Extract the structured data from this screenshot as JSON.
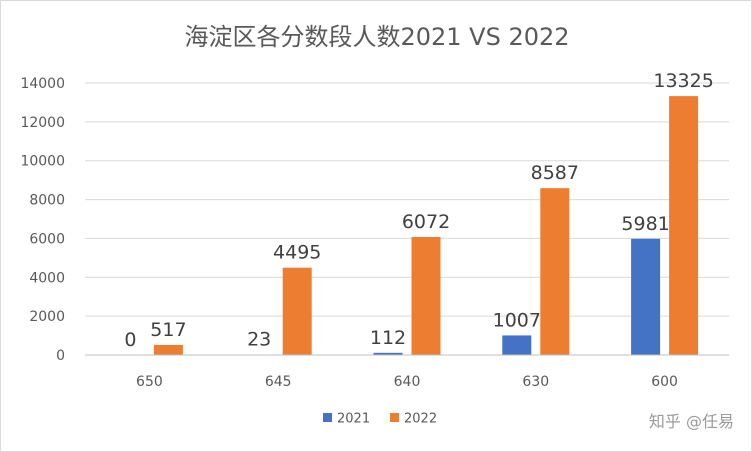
{
  "chart_data": {
    "type": "bar",
    "title": "海淀区各分数段人数2021 VS 2022",
    "categories": [
      "650",
      "645",
      "640",
      "630",
      "600"
    ],
    "series": [
      {
        "name": "2021",
        "values": [
          0,
          23,
          112,
          1007,
          5981
        ],
        "color": "#4472c4"
      },
      {
        "name": "2022",
        "values": [
          517,
          4495,
          6072,
          8587,
          13325
        ],
        "color": "#ed7d31"
      }
    ],
    "ylim": [
      0,
      14000
    ],
    "yticks": [
      "0",
      "2000",
      "4000",
      "6000",
      "8000",
      "10000",
      "12000",
      "14000"
    ],
    "grid": true,
    "legend_position": "bottom",
    "data_labels": true
  },
  "watermark": "知乎 @任易"
}
